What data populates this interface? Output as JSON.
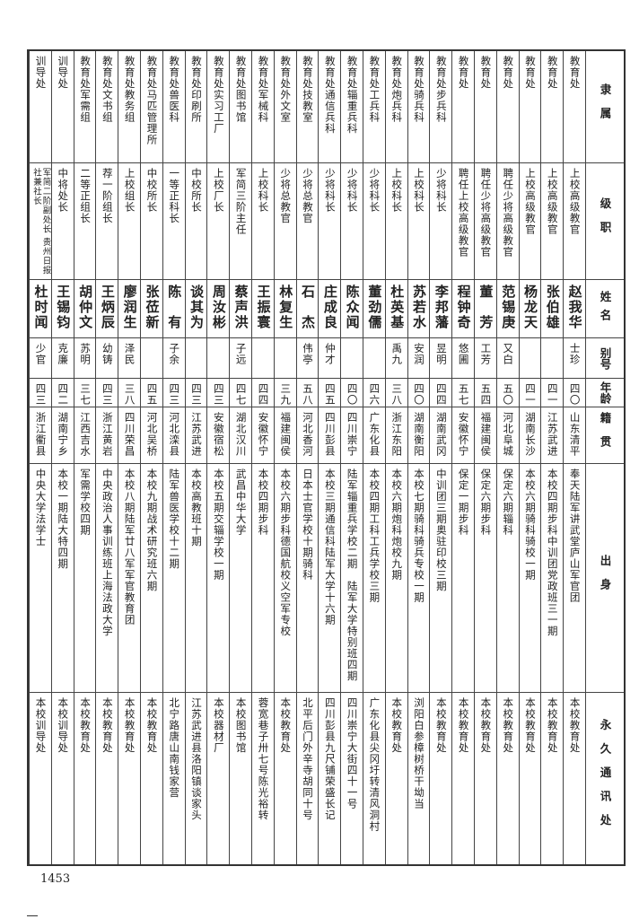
{
  "headers": [
    "隶属",
    "级职",
    "姓名",
    "别号",
    "年龄",
    "籍贯",
    "出身",
    "永久通讯处"
  ],
  "rows": [
    [
      "教育处",
      "上校高级教官",
      "赵我华",
      "士珍",
      "四〇",
      "山东清平",
      "奉天陆军讲武堂庐山军官团",
      "本校教育处"
    ],
    [
      "教育处",
      "上校高级教官",
      "张伯雄",
      "",
      "四一",
      "江苏武进",
      "本校四期步科中训团党政班三一期",
      "本校教育处"
    ],
    [
      "教育处",
      "上校高级教官",
      "杨龙天",
      "",
      "四一",
      "湖南长沙",
      "本校六期骑科骑校一期",
      "本校教育处"
    ],
    [
      "教育处",
      "聘任少将高级教官",
      "范锡庚",
      "又白",
      "五〇",
      "河北阜城",
      "保定六期辎科",
      "本校教育处"
    ],
    [
      "教育处",
      "聘任少将高级教官",
      "董　芳",
      "工芳",
      "五四",
      "福建闽侯",
      "保定六期步科",
      "本校教育处"
    ],
    [
      "教育处",
      "聘任上校高级教官",
      "程钟奇",
      "悠圃",
      "五七",
      "安徽怀宁",
      "保定一期步科",
      "本校教育处"
    ],
    [
      "教育处步兵科",
      "少将科长",
      "李邦藩",
      "昱明",
      "四四",
      "湖南武冈",
      "中训团三期奥驻印校三期",
      "本校教育处"
    ],
    [
      "教育处骑兵科",
      "上校科长",
      "苏若水",
      "安润",
      "四〇",
      "湖南衡阳",
      "本校七期骑科骑兵专校一期",
      "浏阳白参樟树桥干坳当"
    ],
    [
      "教育处炮兵科",
      "上校科长",
      "杜英基",
      "禹九",
      "三八",
      "浙江东阳",
      "本校六期炮科炮校九期",
      "本校教育处"
    ],
    [
      "教育处工兵科",
      "少将科长",
      "董劲儒",
      "",
      "四六",
      "广东化县",
      "本校四期工科工兵学校三期",
      "广东化县尖冈圩转清风洞村"
    ],
    [
      "教育处辎重兵科",
      "少将科长",
      "陈众闻",
      "",
      "四〇",
      "四川崇宁",
      "陆军辎重兵学校二期　陆军大学特别班四期",
      "四川崇宁大街四十一号"
    ],
    [
      "教育处通信兵科",
      "少将科长",
      "庄成良",
      "仲才",
      "四五",
      "四川彭县",
      "本校三期通信科陆军大学十六期",
      "四川彭县九尺铺荣盛长记"
    ],
    [
      "教育处技教室",
      "少将总教官",
      "石　杰",
      "伟亭",
      "五八",
      "河北香河",
      "日本士官学校十期骑科",
      "北平后门外辛寺胡同十号"
    ],
    [
      "教育处外文室",
      "少将总教官",
      "林复生",
      "",
      "三九",
      "福建闽侯",
      "本校六期步科德国航校义空军专校",
      "本校教育处"
    ],
    [
      "教育处军械科",
      "上校科长",
      "王振寰",
      "",
      "四四",
      "安徽怀宁",
      "本校四期步科",
      "蓉宽巷子卅七号陈光裕转"
    ],
    [
      "教育处图书馆",
      "军简三阶主任",
      "蔡声洪",
      "子远",
      "四七",
      "湖北汉川",
      "武昌中华大学",
      "本校图书馆"
    ],
    [
      "教育处实习工厂",
      "上校厂长",
      "周汝彬",
      "",
      "四三",
      "安徽宿松",
      "本校五期交辎学校一期",
      "本校器材厂"
    ],
    [
      "教育处印刷所",
      "中校所长",
      "谈其为",
      "",
      "四三",
      "江苏武进",
      "本校高教班十期",
      "江苏武进县洛阳镇谈家头"
    ],
    [
      "教育处兽医科",
      "一等正科长",
      "陈　有",
      "子余",
      "四三",
      "河北滦县",
      "陆军兽医学校十二期",
      "北宁路唐山南钱家营"
    ],
    [
      "教育处马匹管理所",
      "中校所长",
      "张莅新",
      "",
      "四五",
      "河北吴桥",
      "本校九期战术研究班六期",
      "本校教育处"
    ],
    [
      "教育处教务组",
      "上校组长",
      "廖润生",
      "泽民",
      "三八",
      "四川荣昌",
      "本校八期陆军廿八军军官教育团",
      "本校教育处"
    ],
    [
      "教育处文书组",
      "荐一阶组长",
      "王炳辰",
      "幼铸",
      "四三",
      "浙江黄岩",
      "中央政治人事训练班上海法政大学",
      "本校教育处"
    ],
    [
      "教育处军需组",
      "二等正组长",
      "胡仲文",
      "苏明",
      "三七",
      "江西吉水",
      "军需学校四期",
      "本校教育处"
    ],
    [
      "训导处",
      "中将处长",
      "王锡钧",
      "克廉",
      "四二",
      "湖南宁乡",
      "本校一期陆大特四期",
      "本校训导处"
    ],
    [
      "训导处",
      "军简二阶副处长 贵州日报社兼社长",
      "杜时闻",
      "少官",
      "四三",
      "浙江衢县",
      "中央大学法学士",
      "本校训导处"
    ]
  ],
  "page_number": "1453"
}
